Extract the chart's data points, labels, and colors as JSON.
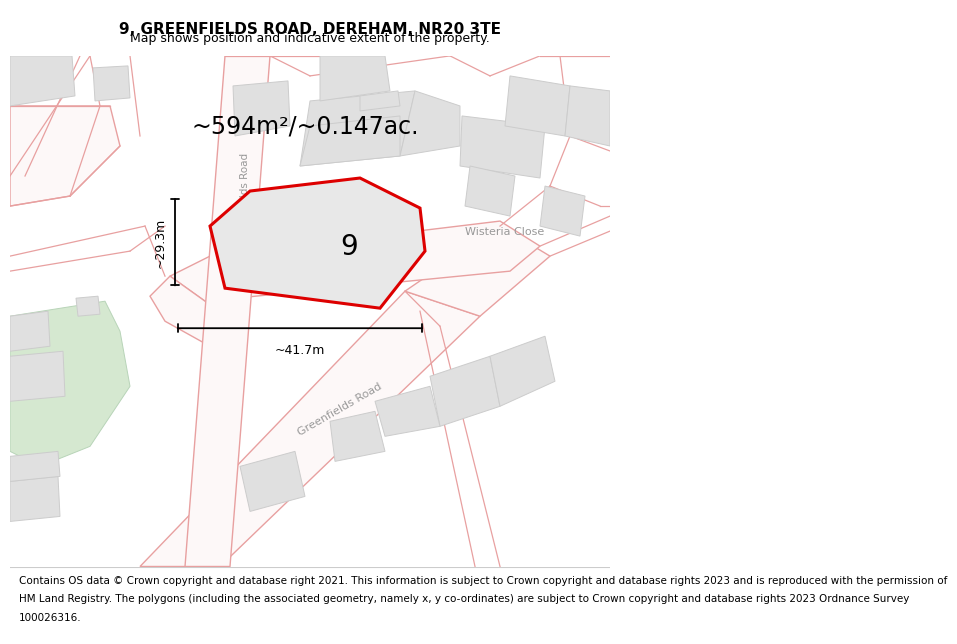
{
  "title": "9, GREENFIELDS ROAD, DEREHAM, NR20 3TE",
  "subtitle": "Map shows position and indicative extent of the property.",
  "footer_lines": [
    "Contains OS data © Crown copyright and database right 2021. This information is subject to Crown copyright and database rights 2023 and is reproduced with the permission of",
    "HM Land Registry. The polygons (including the associated geometry, namely x, y co-ordinates) are subject to Crown copyright and database rights 2023 Ordnance Survey",
    "100026316."
  ],
  "area_text": "~594m²/~0.147ac.",
  "label_9": "9",
  "dim_width": "~41.7m",
  "dim_height": "~29.3m",
  "bg_color": "#ffffff",
  "road_line_color": "#e8a0a0",
  "road_fill_color": "#f5f0f0",
  "building_fill": "#e0e0e0",
  "building_edge": "#cccccc",
  "green_fill": "#d0e8d0",
  "plot_fill": "#e8e8e8",
  "plot_stroke": "#dd0000",
  "road_label_color": "#aaaaaa",
  "title_fontsize": 11,
  "subtitle_fontsize": 9,
  "footer_fontsize": 7.5
}
